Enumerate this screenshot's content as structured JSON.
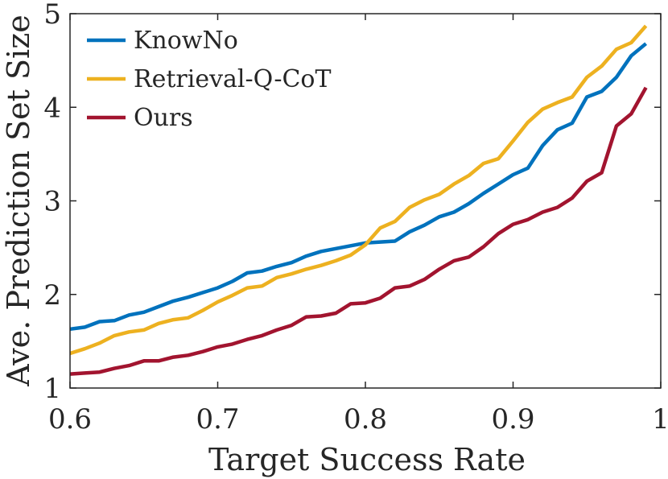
{
  "chart_data": {
    "type": "line",
    "title": "",
    "xlabel": "Target Success Rate",
    "ylabel": "Ave. Prediction Set Size",
    "xlim": [
      0.6,
      1.0
    ],
    "ylim": [
      1,
      5
    ],
    "xticks": [
      0.6,
      0.7,
      0.8,
      0.9,
      1.0
    ],
    "xtick_labels": [
      "0.6",
      "0.7",
      "0.8",
      "0.9",
      "1"
    ],
    "yticks": [
      1,
      2,
      3,
      4,
      5
    ],
    "ytick_labels": [
      "1",
      "2",
      "3",
      "4",
      "5"
    ],
    "grid": false,
    "legend_position": "top-left",
    "x": [
      0.6,
      0.61,
      0.62,
      0.63,
      0.64,
      0.65,
      0.66,
      0.67,
      0.68,
      0.69,
      0.7,
      0.71,
      0.72,
      0.73,
      0.74,
      0.75,
      0.76,
      0.77,
      0.78,
      0.79,
      0.8,
      0.81,
      0.82,
      0.83,
      0.84,
      0.85,
      0.86,
      0.87,
      0.88,
      0.89,
      0.9,
      0.91,
      0.92,
      0.93,
      0.94,
      0.95,
      0.96,
      0.97,
      0.98,
      0.99
    ],
    "series": [
      {
        "name": "KnowNo",
        "color": "#0072BD",
        "values": [
          1.63,
          1.65,
          1.71,
          1.72,
          1.78,
          1.81,
          1.87,
          1.93,
          1.97,
          2.02,
          2.07,
          2.14,
          2.23,
          2.25,
          2.3,
          2.34,
          2.41,
          2.46,
          2.49,
          2.52,
          2.55,
          2.56,
          2.57,
          2.67,
          2.74,
          2.83,
          2.88,
          2.97,
          3.08,
          3.18,
          3.28,
          3.35,
          3.59,
          3.76,
          3.83,
          4.11,
          4.17,
          4.32,
          4.55,
          4.68
        ]
      },
      {
        "name": "Retrieval-Q-CoT",
        "color": "#EDB120",
        "values": [
          1.37,
          1.42,
          1.48,
          1.56,
          1.6,
          1.62,
          1.69,
          1.73,
          1.75,
          1.83,
          1.92,
          1.99,
          2.07,
          2.09,
          2.18,
          2.22,
          2.27,
          2.31,
          2.36,
          2.42,
          2.53,
          2.71,
          2.78,
          2.93,
          3.01,
          3.07,
          3.18,
          3.27,
          3.4,
          3.45,
          3.64,
          3.84,
          3.98,
          4.05,
          4.11,
          4.32,
          4.44,
          4.62,
          4.69,
          4.87
        ]
      },
      {
        "name": "Ours",
        "color": "#A2142F",
        "values": [
          1.15,
          1.16,
          1.17,
          1.21,
          1.24,
          1.29,
          1.29,
          1.33,
          1.35,
          1.39,
          1.44,
          1.47,
          1.52,
          1.56,
          1.62,
          1.67,
          1.76,
          1.77,
          1.8,
          1.9,
          1.91,
          1.96,
          2.07,
          2.09,
          2.16,
          2.27,
          2.36,
          2.4,
          2.51,
          2.65,
          2.75,
          2.8,
          2.88,
          2.93,
          3.03,
          3.21,
          3.3,
          3.8,
          3.93,
          4.21
        ]
      }
    ]
  }
}
